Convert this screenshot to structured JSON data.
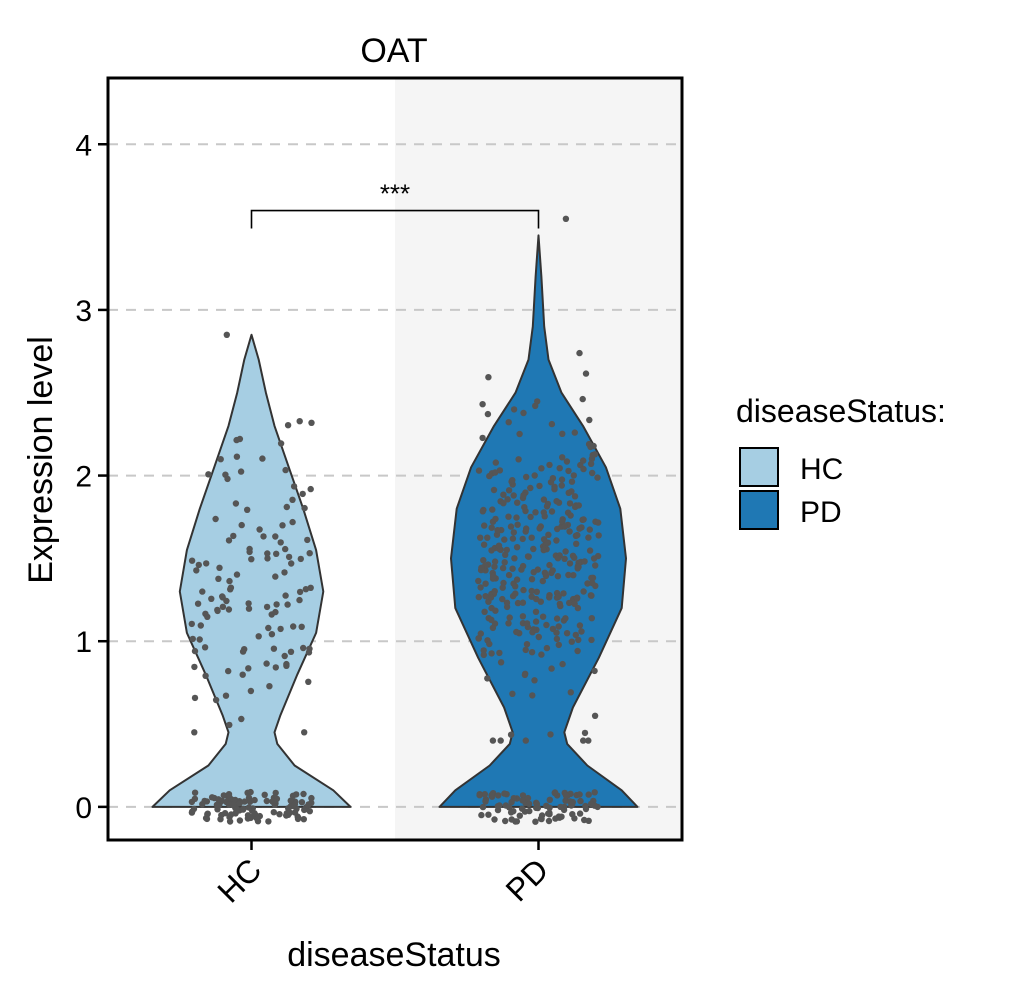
{
  "chart_data": {
    "type": "violin",
    "title": "OAT",
    "xlabel": "diseaseStatus",
    "ylabel": "Expression level",
    "categories": [
      "HC",
      "PD"
    ],
    "ylim": [
      -0.2,
      4.4
    ],
    "yticks": [
      "0",
      "1",
      "2",
      "3",
      "4"
    ],
    "grid": true,
    "legend": {
      "title": "diseaseStatus:",
      "placement": "right",
      "entries": [
        {
          "label": "HC",
          "color": "#a6cee3"
        },
        {
          "label": "PD",
          "color": "#1f78b4"
        }
      ]
    },
    "significance": {
      "from": "HC",
      "to": "PD",
      "label": "***",
      "y": 3.6
    },
    "violins": [
      {
        "category": "HC",
        "color": "#a6cee3",
        "ymax": 2.85,
        "profile": [
          [
            0,
            0.69
          ],
          [
            0.1,
            0.57
          ],
          [
            0.25,
            0.3
          ],
          [
            0.38,
            0.18
          ],
          [
            0.45,
            0.16
          ],
          [
            0.55,
            0.2
          ],
          [
            0.8,
            0.32
          ],
          [
            1.05,
            0.45
          ],
          [
            1.3,
            0.5
          ],
          [
            1.55,
            0.45
          ],
          [
            1.8,
            0.36
          ],
          [
            2.05,
            0.26
          ],
          [
            2.3,
            0.16
          ],
          [
            2.5,
            0.1
          ],
          [
            2.7,
            0.05
          ],
          [
            2.85,
            0
          ]
        ]
      },
      {
        "category": "PD",
        "color": "#1f78b4",
        "ymax": 3.45,
        "profile": [
          [
            0,
            0.69
          ],
          [
            0.1,
            0.58
          ],
          [
            0.25,
            0.34
          ],
          [
            0.38,
            0.2
          ],
          [
            0.45,
            0.18
          ],
          [
            0.6,
            0.24
          ],
          [
            0.9,
            0.42
          ],
          [
            1.2,
            0.58
          ],
          [
            1.5,
            0.61
          ],
          [
            1.8,
            0.57
          ],
          [
            2.05,
            0.47
          ],
          [
            2.3,
            0.31
          ],
          [
            2.5,
            0.16
          ],
          [
            2.7,
            0.07
          ],
          [
            2.9,
            0.04
          ],
          [
            3.2,
            0.02
          ],
          [
            3.45,
            0
          ]
        ]
      }
    ],
    "points": [
      {
        "category": "HC",
        "n": 230,
        "zero_n": 110,
        "mean": 1.35,
        "sd": 0.45,
        "min": 0.45,
        "max": 2.85
      },
      {
        "category": "PD",
        "n": 420,
        "zero_n": 90,
        "mean": 1.45,
        "sd": 0.42,
        "min": 0.4,
        "max": 3.55
      }
    ],
    "point_color": "#555555"
  }
}
